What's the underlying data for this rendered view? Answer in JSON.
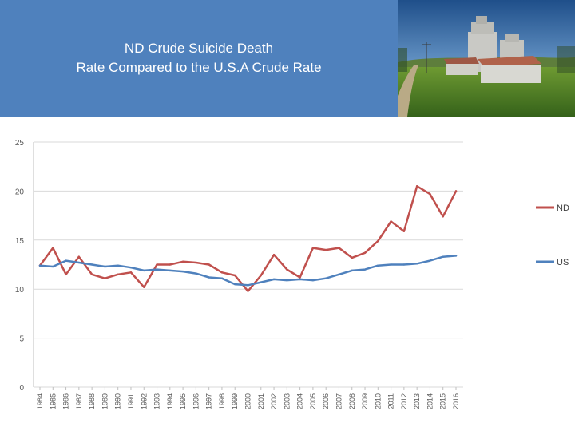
{
  "header": {
    "title_line1": "ND Crude Suicide Death",
    "title_line2": "Rate Compared to the U.S.A Crude Rate",
    "background_color": "#4f81bd",
    "photo_icon": "grain-elevator-photo"
  },
  "chart_data": {
    "type": "line",
    "title": "ND Crude Suicide Death Rate Compared to the U.S.A Crude Rate",
    "xlabel": "",
    "ylabel": "",
    "ylim": [
      0,
      25
    ],
    "yticks": [
      0,
      5,
      10,
      15,
      20,
      25
    ],
    "grid": "horizontal",
    "legend_position": "right",
    "x": [
      "1984",
      "1985",
      "1986",
      "1987",
      "1988",
      "1989",
      "1990",
      "1991",
      "1992",
      "1993",
      "1994",
      "1995",
      "1996",
      "1997",
      "1998",
      "1999",
      "2000",
      "2001",
      "2002",
      "2003",
      "2004",
      "2005",
      "2006",
      "2007",
      "2008",
      "2009",
      "2010",
      "2011",
      "2012",
      "2013",
      "2014",
      "2015",
      "2016"
    ],
    "series": [
      {
        "name": "ND",
        "color": "#c0504d",
        "values": [
          12.4,
          14.2,
          11.5,
          13.3,
          11.5,
          11.1,
          11.5,
          11.7,
          10.2,
          12.5,
          12.5,
          12.8,
          12.7,
          12.5,
          11.7,
          11.4,
          9.8,
          11.4,
          13.5,
          12.0,
          11.2,
          14.2,
          14.0,
          14.2,
          13.2,
          13.7,
          14.9,
          16.9,
          15.9,
          20.5,
          19.7,
          17.4,
          20.0
        ]
      },
      {
        "name": "US",
        "color": "#4f81bd",
        "values": [
          12.4,
          12.3,
          12.9,
          12.7,
          12.5,
          12.3,
          12.4,
          12.2,
          11.9,
          12.0,
          11.9,
          11.8,
          11.6,
          11.2,
          11.1,
          10.5,
          10.4,
          10.7,
          11.0,
          10.9,
          11.0,
          10.9,
          11.1,
          11.5,
          11.9,
          12.0,
          12.4,
          12.5,
          12.5,
          12.6,
          12.9,
          13.3,
          13.4
        ]
      }
    ]
  }
}
